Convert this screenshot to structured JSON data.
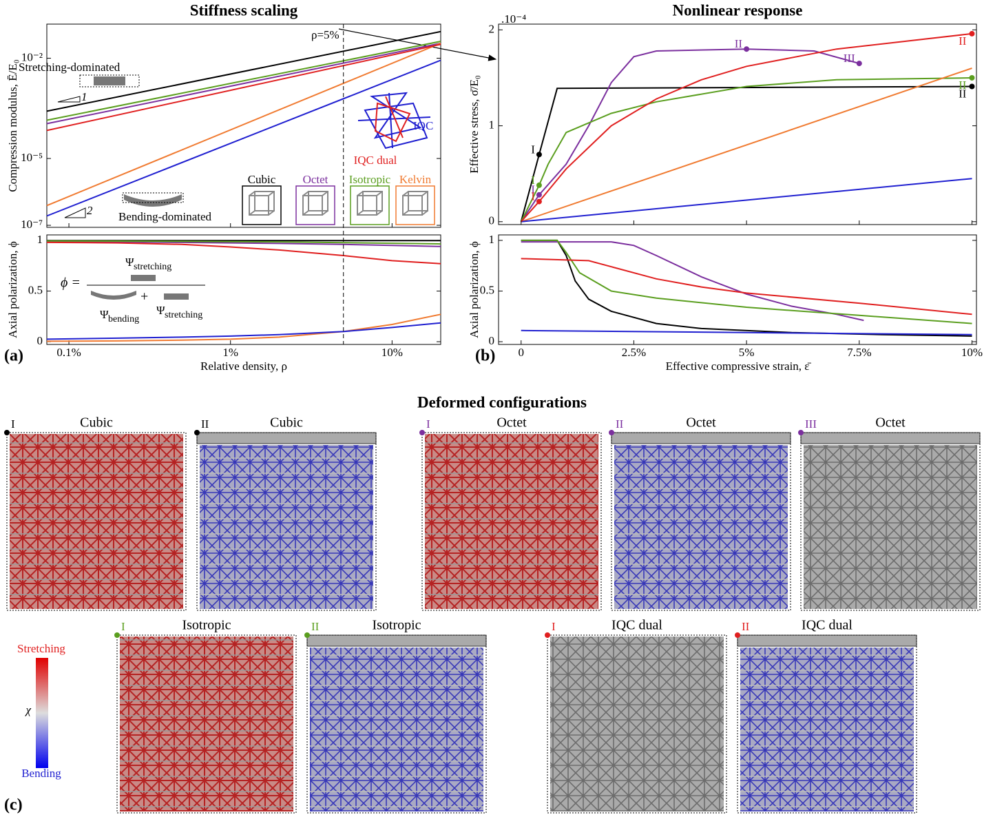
{
  "chart_data": [
    {
      "type": "line",
      "title": "Stiffness scaling",
      "y_label": "Compression modulus, Ē/E₀",
      "log_x": true,
      "log_y": true,
      "xlim": [
        0.00073,
        0.2
      ],
      "ylim": [
        8.7e-08,
        0.105
      ],
      "yticks": [
        {
          "value": 1e-07,
          "label": "10⁻⁷"
        },
        {
          "value": 1e-05,
          "label": "10⁻⁵"
        },
        {
          "value": 0.01,
          "label": "10⁻²"
        }
      ],
      "series": [
        {
          "name": "Cubic",
          "color": "#000000",
          "x": [
            0.00073,
            0.2
          ],
          "values": [
            0.00026,
            0.063
          ]
        },
        {
          "name": "Octet",
          "color": "#7b2f9e",
          "x": [
            0.00073,
            0.2
          ],
          "values": [
            0.00011,
            0.028
          ]
        },
        {
          "name": "Isotropic",
          "color": "#5a9e1e",
          "x": [
            0.00073,
            0.2
          ],
          "values": [
            0.00014,
            0.032
          ]
        },
        {
          "name": "Kelvin",
          "color": "#f07a30",
          "x": [
            0.00073,
            0.2
          ],
          "values": [
            3.9e-07,
            0.028
          ]
        },
        {
          "name": "IQC",
          "color": "#1f1fd0",
          "x": [
            0.00073,
            0.2
          ],
          "values": [
            1.9e-07,
            0.0087
          ]
        },
        {
          "name": "IQC dual",
          "color": "#e01f1f",
          "x": [
            0.00073,
            0.2
          ],
          "values": [
            6.9e-05,
            0.026
          ]
        }
      ],
      "reference": {
        "x": 0.05,
        "label": "ρ=5%"
      },
      "annotations": {
        "stretching": "Stretching-dominated",
        "bending": "Bending-dominated",
        "slope_stretching": "1",
        "slope_bending": "2"
      }
    },
    {
      "type": "line",
      "x_label": "Relative density, ρ",
      "y_label": "Axial polarization, ϕ",
      "log_x": true,
      "xlim": [
        0.00073,
        0.2
      ],
      "ylim": [
        -0.027,
        1.054
      ],
      "xticks": [
        {
          "value": 0.001,
          "label": "0.1%"
        },
        {
          "value": 0.01,
          "label": "1%"
        },
        {
          "value": 0.1,
          "label": "10%"
        }
      ],
      "yticks": [
        0,
        0.5,
        1
      ],
      "x": [
        0.00073,
        0.002,
        0.005,
        0.01,
        0.02,
        0.05,
        0.1,
        0.2
      ],
      "series": [
        {
          "name": "Cubic",
          "color": "#000000",
          "values": [
            0.998,
            0.998,
            0.998,
            0.998,
            0.998,
            0.998,
            0.998,
            0.998
          ]
        },
        {
          "name": "Octet",
          "color": "#7b2f9e",
          "values": [
            0.99,
            0.985,
            0.98,
            0.975,
            0.97,
            0.96,
            0.95,
            0.94
          ]
        },
        {
          "name": "Isotropic",
          "color": "#5a9e1e",
          "values": [
            0.995,
            0.993,
            0.99,
            0.988,
            0.985,
            0.978,
            0.972,
            0.965
          ]
        },
        {
          "name": "Kelvin",
          "color": "#f07a30",
          "values": [
            0.004,
            0.008,
            0.015,
            0.025,
            0.045,
            0.1,
            0.17,
            0.27
          ]
        },
        {
          "name": "IQC",
          "color": "#1f1fd0",
          "values": [
            0.025,
            0.035,
            0.045,
            0.055,
            0.07,
            0.1,
            0.14,
            0.185
          ]
        },
        {
          "name": "IQC dual",
          "color": "#e01f1f",
          "values": [
            0.98,
            0.975,
            0.96,
            0.935,
            0.905,
            0.85,
            0.8,
            0.77
          ]
        }
      ],
      "formula": {
        "lhs": "ϕ =",
        "psi": "Ψ",
        "stretching": "stretching",
        "bending": "bending",
        "plus": "+"
      }
    },
    {
      "type": "line",
      "title": "Nonlinear response",
      "y_label": "Effective stress, σ̄/E₀",
      "y_scale_label": ".10⁻⁴",
      "xlim": [
        -0.5,
        10.1
      ],
      "ylim": [
        -0.03,
        2.06
      ],
      "yticks": [
        0,
        1,
        2
      ],
      "series": [
        {
          "name": "Cubic",
          "color": "#000000",
          "x": [
            0,
            0.4,
            0.8,
            10
          ],
          "values": [
            0,
            0.7,
            1.39,
            1.41
          ],
          "points": [
            {
              "x": 0.4,
              "y": 0.7,
              "label": "I"
            },
            {
              "x": 10,
              "y": 1.41,
              "label": "II"
            }
          ]
        },
        {
          "name": "Octet",
          "color": "#7b2f9e",
          "x": [
            0,
            0.4,
            1,
            1.5,
            2,
            2.5,
            3,
            5,
            6.5,
            7.5
          ],
          "values": [
            0,
            0.28,
            0.6,
            1.0,
            1.45,
            1.72,
            1.78,
            1.8,
            1.78,
            1.65
          ],
          "points": [
            {
              "x": 0.4,
              "y": 0.28,
              "label": "I"
            },
            {
              "x": 5,
              "y": 1.8,
              "label": "II"
            },
            {
              "x": 7.5,
              "y": 1.65,
              "label": "III"
            }
          ]
        },
        {
          "name": "Isotropic",
          "color": "#5a9e1e",
          "x": [
            0,
            0.4,
            0.6,
            1,
            2,
            3,
            5,
            7,
            10
          ],
          "values": [
            0,
            0.38,
            0.6,
            0.93,
            1.13,
            1.25,
            1.41,
            1.48,
            1.5
          ],
          "points": [
            {
              "x": 0.4,
              "y": 0.38,
              "label": "I"
            },
            {
              "x": 10,
              "y": 1.5,
              "label": "II"
            }
          ]
        },
        {
          "name": "Kelvin",
          "color": "#f07a30",
          "x": [
            0,
            10
          ],
          "values": [
            0,
            1.6
          ]
        },
        {
          "name": "IQC",
          "color": "#1f1fd0",
          "x": [
            0,
            10
          ],
          "values": [
            0,
            0.45
          ]
        },
        {
          "name": "IQC dual",
          "color": "#e01f1f",
          "x": [
            0,
            0.4,
            1,
            2,
            3,
            4,
            5,
            7,
            10
          ],
          "values": [
            0,
            0.21,
            0.55,
            1.0,
            1.28,
            1.48,
            1.62,
            1.8,
            1.96
          ],
          "points": [
            {
              "x": 0.4,
              "y": 0.21,
              "label": "I"
            },
            {
              "x": 10,
              "y": 1.96,
              "label": "II"
            }
          ]
        }
      ]
    },
    {
      "type": "line",
      "x_label": "Effective compressive strain, ε̄",
      "y_label": "Axial polarization, ϕ",
      "xlim": [
        -0.5,
        10.1
      ],
      "ylim": [
        -0.027,
        1.054
      ],
      "xticks": [
        0,
        {
          "value": 2.5,
          "label": "2.5%"
        },
        {
          "value": 5,
          "label": "5%"
        },
        {
          "value": 7.5,
          "label": "7.5%"
        },
        {
          "value": 10,
          "label": "10%"
        }
      ],
      "yticks": [
        0,
        0.5,
        1
      ],
      "series": [
        {
          "name": "Cubic",
          "color": "#000000",
          "x": [
            0,
            0.8,
            1,
            1.2,
            1.5,
            2,
            3,
            4,
            6,
            8,
            10
          ],
          "values": [
            1,
            1,
            0.85,
            0.6,
            0.42,
            0.3,
            0.18,
            0.13,
            0.09,
            0.07,
            0.055
          ]
        },
        {
          "name": "Octet",
          "color": "#7b2f9e",
          "x": [
            0,
            2,
            2.5,
            3,
            4,
            5,
            6,
            7,
            7.6
          ],
          "values": [
            0.985,
            0.985,
            0.95,
            0.85,
            0.64,
            0.47,
            0.35,
            0.27,
            0.21
          ]
        },
        {
          "name": "Isotropic",
          "color": "#5a9e1e",
          "x": [
            0,
            0.8,
            1,
            1.3,
            2,
            3,
            5,
            7.5,
            10
          ],
          "values": [
            1,
            1,
            0.88,
            0.68,
            0.5,
            0.43,
            0.34,
            0.26,
            0.18
          ]
        },
        {
          "name": "IQC",
          "color": "#1f1fd0",
          "x": [
            0,
            5,
            10
          ],
          "values": [
            0.11,
            0.09,
            0.07
          ]
        },
        {
          "name": "IQC dual",
          "color": "#e01f1f",
          "x": [
            0,
            1.5,
            2,
            3,
            4,
            5,
            7.5,
            10
          ],
          "values": [
            0.82,
            0.8,
            0.74,
            0.62,
            0.54,
            0.48,
            0.38,
            0.27
          ]
        }
      ]
    }
  ],
  "figure": {
    "panel_labels": [
      "(a)",
      "(b)",
      "(c)"
    ],
    "deformed_title": "Deformed configurations",
    "colorbar": {
      "top": "Stretching",
      "symbol": "χ",
      "bottom": "Bending"
    },
    "tiles": [
      {
        "state": "I",
        "title": "Cubic",
        "marker_color": "#000000"
      },
      {
        "state": "II",
        "title": "Cubic",
        "marker_color": "#000000"
      },
      {
        "state": "I",
        "title": "Octet",
        "marker_color": "#7b2f9e"
      },
      {
        "state": "II",
        "title": "Octet",
        "marker_color": "#7b2f9e"
      },
      {
        "state": "III",
        "title": "Octet",
        "marker_color": "#7b2f9e"
      },
      {
        "state": "I",
        "title": "Isotropic",
        "marker_color": "#5a9e1e"
      },
      {
        "state": "II",
        "title": "Isotropic",
        "marker_color": "#5a9e1e"
      },
      {
        "state": "I",
        "title": "IQC dual",
        "marker_color": "#e01f1f"
      },
      {
        "state": "II",
        "title": "IQC dual",
        "marker_color": "#e01f1f"
      }
    ]
  }
}
